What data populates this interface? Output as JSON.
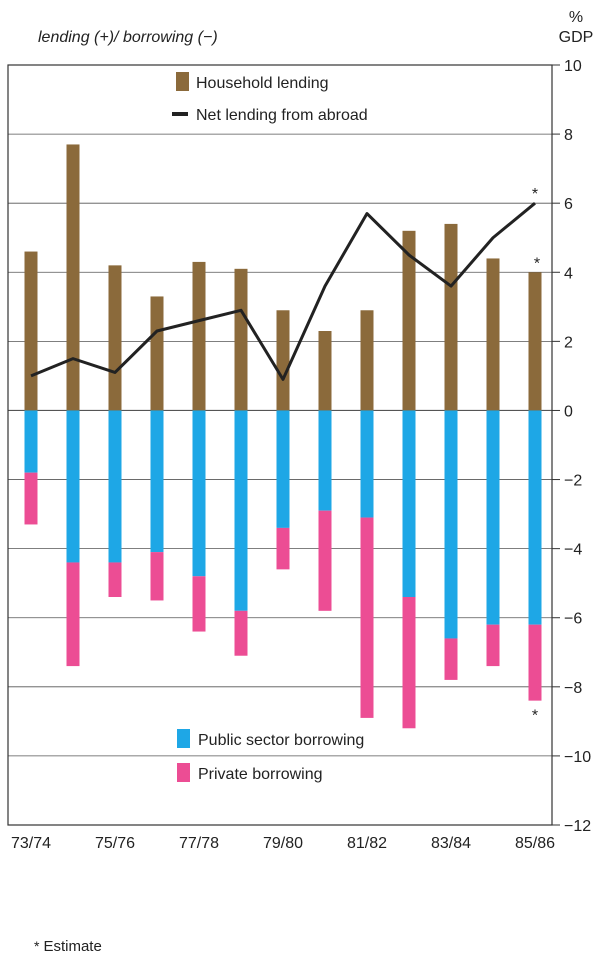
{
  "chart_data": {
    "type": "bar",
    "title": "",
    "ylabel_left": "lending (+)/ borrowing (−)",
    "ylabel_right_line1": "%",
    "ylabel_right_line2": "GDP",
    "ylim": [
      -12,
      10
    ],
    "yticks": [
      10,
      8,
      6,
      4,
      2,
      0,
      -2,
      -4,
      -6,
      -8,
      -10,
      -12
    ],
    "ytick_labels": [
      "10",
      "8",
      "6",
      "4",
      "2",
      "0",
      "−2",
      "−4",
      "−6",
      "−8",
      "−10",
      "−12"
    ],
    "grid": true,
    "categories": [
      "73/74",
      "74/75",
      "75/76",
      "76/77",
      "77/78",
      "78/79",
      "79/80",
      "80/81",
      "81/82",
      "82/83",
      "83/84",
      "84/85",
      "85/86"
    ],
    "xtick_labels": [
      "73/74",
      "75/76",
      "77/78",
      "79/80",
      "81/82",
      "83/84",
      "85/86"
    ],
    "series": [
      {
        "name": "Household lending",
        "kind": "bar",
        "color": "#8b6a3b",
        "values": [
          4.6,
          7.7,
          4.2,
          3.3,
          4.3,
          4.1,
          2.9,
          2.3,
          2.9,
          5.2,
          5.4,
          4.4,
          4.0
        ]
      },
      {
        "name": "Public sector borrowing",
        "kind": "bar",
        "color": "#1ea7e6",
        "values": [
          -1.8,
          -4.4,
          -4.4,
          -4.1,
          -4.8,
          -5.8,
          -3.4,
          -2.9,
          -3.1,
          -5.4,
          -6.6,
          -6.2,
          -6.2
        ]
      },
      {
        "name": "Private borrowing",
        "kind": "bar",
        "color": "#ec4d94",
        "values": [
          -1.5,
          -3.0,
          -1.0,
          -1.4,
          -1.6,
          -1.3,
          -1.2,
          -2.9,
          -5.8,
          -3.8,
          -1.2,
          -1.2,
          -2.2
        ]
      },
      {
        "name": "Net lending from abroad",
        "kind": "line",
        "color": "#222222",
        "values": [
          1.0,
          1.5,
          1.1,
          2.3,
          2.6,
          2.9,
          0.9,
          3.6,
          5.7,
          4.5,
          3.6,
          5.0,
          6.0
        ]
      }
    ],
    "annotations": [
      {
        "text": "*",
        "category": "85/86",
        "series": "Net lending from abroad",
        "position": "above"
      },
      {
        "text": "*",
        "category": "85/86",
        "series": "Household lending",
        "position": "above"
      },
      {
        "text": "*",
        "category": "85/86",
        "series": "Private borrowing",
        "position": "below"
      }
    ],
    "legend_top": [
      "Household lending",
      "Net lending from abroad"
    ],
    "legend_bottom": [
      "Public sector borrowing",
      "Private borrowing"
    ]
  },
  "footnote": {
    "star": "*",
    "text": "Estimate"
  }
}
